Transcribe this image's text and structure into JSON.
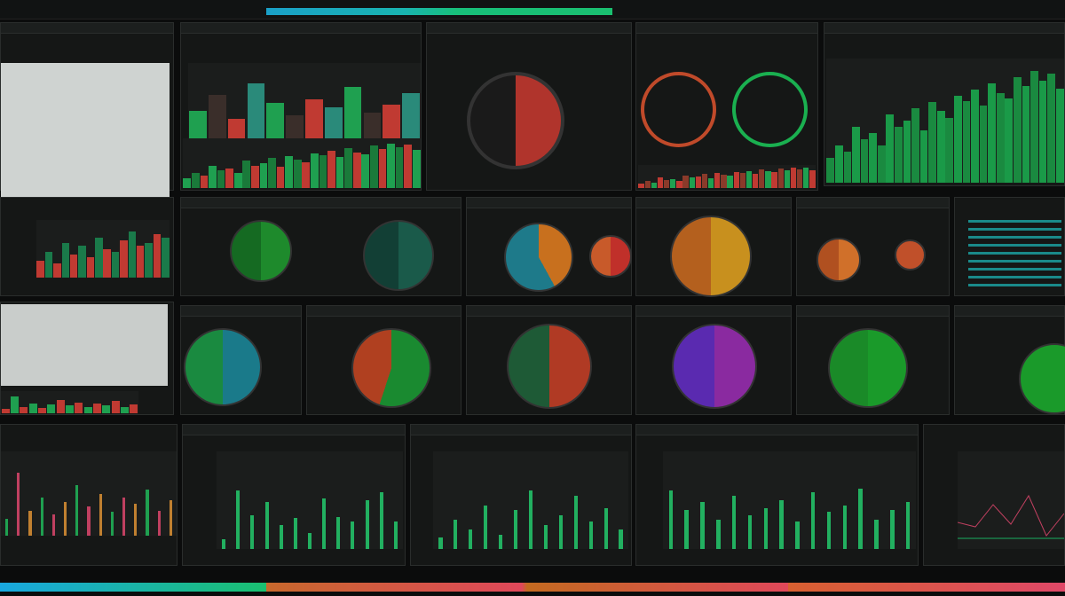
{
  "header": {
    "progress_percent": 100,
    "accent_colors": [
      "#1aa0c8",
      "#1ac070"
    ]
  },
  "palette": {
    "green": "#1fa050",
    "red": "#c03a32",
    "teal": "#1e7a7a",
    "orange": "#c8701e",
    "purple": "#6a2aa0",
    "bg": "#0b0c0c"
  },
  "panels": {
    "top_mid_bars": [
      40,
      60,
      30,
      75,
      50,
      35,
      55,
      45,
      70,
      38,
      48,
      62
    ],
    "top_right_bars": [
      20,
      30,
      25,
      45,
      35,
      40,
      30,
      55,
      45,
      50,
      60,
      42,
      65,
      58,
      52,
      70,
      66,
      75,
      62,
      80,
      72,
      68,
      85,
      78,
      90,
      82,
      88,
      76
    ],
    "left_small_bars": [
      30,
      45,
      25,
      60,
      40,
      55,
      35,
      70,
      50,
      45,
      65,
      80,
      55,
      60,
      75,
      70
    ],
    "bottom_bars_1": [
      10,
      60,
      35,
      48,
      25,
      32,
      16,
      52,
      33,
      28,
      50,
      58,
      28
    ],
    "bottom_bars_2": [
      12,
      30,
      20,
      45,
      15,
      40,
      60,
      25,
      35,
      55,
      28,
      42,
      20
    ],
    "bottom_bars_3": [
      60,
      40,
      48,
      30,
      55,
      35,
      42,
      50,
      28,
      58,
      38,
      45,
      62,
      30,
      40,
      48
    ],
    "left_bottom_bars": [
      20,
      75,
      30,
      45,
      25,
      40,
      60,
      35,
      50,
      28,
      45,
      38,
      55,
      30,
      42
    ]
  },
  "pies": [
    {
      "id": "pie-a",
      "colors": [
        "#1e8a2c",
        "#156a22"
      ],
      "split": 0.5
    },
    {
      "id": "pie-b",
      "colors": [
        "#1a5a4a",
        "#123f35"
      ],
      "split": 0.5
    },
    {
      "id": "pie-c",
      "colors": [
        "#c8701e",
        "#1e7a8a"
      ],
      "split": 0.42
    },
    {
      "id": "pie-d",
      "colors": [
        "#c0302a",
        "#c85a2a"
      ],
      "split": 0.5
    },
    {
      "id": "pie-e",
      "colors": [
        "#c8901e",
        "#b4601e"
      ],
      "split": 0.5
    },
    {
      "id": "pie-f",
      "colors": [
        "#d0702a",
        "#b05020"
      ],
      "split": 0.5
    },
    {
      "id": "pie-g",
      "colors": [
        "#1a7a8a",
        "#1a8a40"
      ],
      "split": 0.5
    },
    {
      "id": "pie-h",
      "colors": [
        "#1a8a30",
        "#b04020"
      ],
      "split": 0.55
    },
    {
      "id": "pie-i",
      "colors": [
        "#b03a24",
        "#1e5a36"
      ],
      "split": 0.5
    },
    {
      "id": "pie-j",
      "colors": [
        "#8a2aa0",
        "#5a2ab0"
      ],
      "split": 0.5
    },
    {
      "id": "pie-k",
      "colors": [
        "#1a9a2a",
        "#1a8a28"
      ],
      "split": 0.5
    },
    {
      "id": "pie-big",
      "colors": [
        "#b0342c",
        "#1a1a1a"
      ],
      "split": 0.5
    }
  ]
}
